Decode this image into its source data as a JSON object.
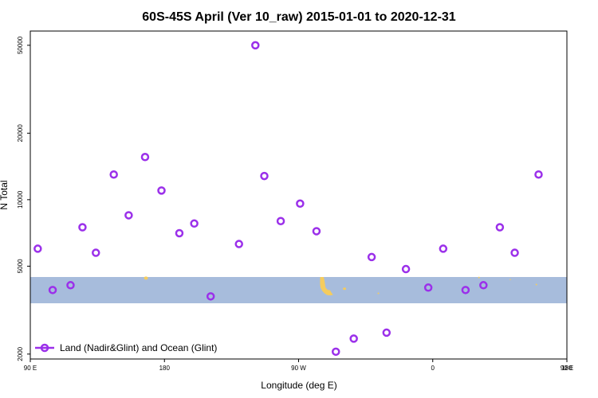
{
  "chart_data": {
    "type": "scatter",
    "title": "60S-45S April (Ver 10_raw)   2015-01-01 to 2020-12-31",
    "xlabel": "Longitude (deg E)",
    "ylabel": "N Total",
    "x_scale": "longitude",
    "y_scale": "log",
    "xlim": [
      90,
      450
    ],
    "ylim": [
      1900,
      58000
    ],
    "x_ticks": [
      {
        "value": 90,
        "label": "90 E"
      },
      {
        "value": 180,
        "label": "180"
      },
      {
        "value": 270,
        "label": "90 W"
      },
      {
        "value": 360,
        "label": "0"
      },
      {
        "value": 450,
        "label": "90 E"
      },
      {
        "value": 540,
        "label": "180"
      }
    ],
    "y_ticks": [
      {
        "value": 2000,
        "label": "2000"
      },
      {
        "value": 5000,
        "label": "5000"
      },
      {
        "value": 10000,
        "label": "10000"
      },
      {
        "value": 20000,
        "label": "20000"
      },
      {
        "value": 50000,
        "label": "50000"
      }
    ],
    "latitude_band": {
      "lat_min": -60,
      "lat_max": -45,
      "color": "#a7bcdc",
      "land_color": "#f5cc5e"
    },
    "grid": false,
    "legend_position": "bottom-left",
    "series": [
      {
        "name": "Land (Nadir&Glint) and Ocean (Glint)",
        "color": "#9b30ea",
        "points": [
          {
            "x": 95,
            "y": 6000
          },
          {
            "x": 105,
            "y": 3900
          },
          {
            "x": 117,
            "y": 4100
          },
          {
            "x": 125,
            "y": 7500
          },
          {
            "x": 134,
            "y": 5750
          },
          {
            "x": 146,
            "y": 13000
          },
          {
            "x": 156,
            "y": 8500
          },
          {
            "x": 167,
            "y": 15600
          },
          {
            "x": 178,
            "y": 11000
          },
          {
            "x": 190,
            "y": 7050
          },
          {
            "x": 200,
            "y": 7800
          },
          {
            "x": 211,
            "y": 3650
          },
          {
            "x": 230,
            "y": 6300
          },
          {
            "x": 241,
            "y": 50000
          },
          {
            "x": 247,
            "y": 12800
          },
          {
            "x": 258,
            "y": 8000
          },
          {
            "x": 271,
            "y": 9600
          },
          {
            "x": 282,
            "y": 7200
          },
          {
            "x": 295,
            "y": 2050
          },
          {
            "x": 307,
            "y": 2350
          },
          {
            "x": 319,
            "y": 5500
          },
          {
            "x": 329,
            "y": 2500
          },
          {
            "x": 342,
            "y": 4850
          },
          {
            "x": 357,
            "y": 4000
          },
          {
            "x": 367,
            "y": 6000
          },
          {
            "x": 382,
            "y": 3900
          },
          {
            "x": 394,
            "y": 4100
          },
          {
            "x": 405,
            "y": 7500
          },
          {
            "x": 415,
            "y": 5750
          },
          {
            "x": 431,
            "y": 13000
          }
        ]
      }
    ]
  }
}
